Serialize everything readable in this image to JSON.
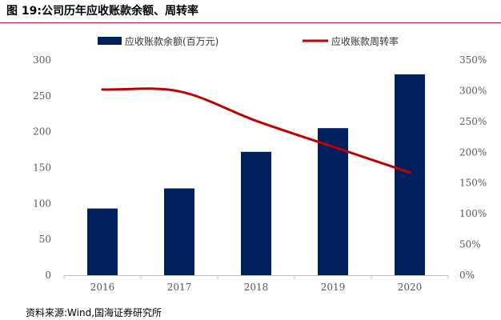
{
  "figure_title": "图 19:公司历年应收账款余额、周转率",
  "source": "资料来源:Wind,国海证券研究所",
  "colors": {
    "bar": "#002060",
    "line": "#c00000",
    "rule": "#b01e23",
    "axis": "#bfbfbf",
    "text": "#595959"
  },
  "chart_data": {
    "type": "bar",
    "title": "",
    "categories": [
      "2016",
      "2017",
      "2018",
      "2019",
      "2020"
    ],
    "legend_position": "top",
    "grid": false,
    "series": [
      {
        "name": "应收账款余额(百万元)",
        "type": "bar",
        "axis": "left",
        "values": [
          93,
          121,
          172,
          205,
          280
        ]
      },
      {
        "name": "应收账款周转率",
        "type": "line",
        "axis": "right",
        "values": [
          302,
          299,
          251,
          209,
          167
        ],
        "unit": "%"
      }
    ],
    "y_left": {
      "min": 0,
      "max": 300,
      "ticks": [
        "0",
        "50",
        "100",
        "150",
        "200",
        "250",
        "300"
      ]
    },
    "y_right": {
      "min": 0,
      "max": 350,
      "ticks": [
        "0%",
        "50%",
        "100%",
        "150%",
        "200%",
        "250%",
        "300%",
        "350%"
      ]
    },
    "xlabel": "",
    "ylabel": ""
  }
}
